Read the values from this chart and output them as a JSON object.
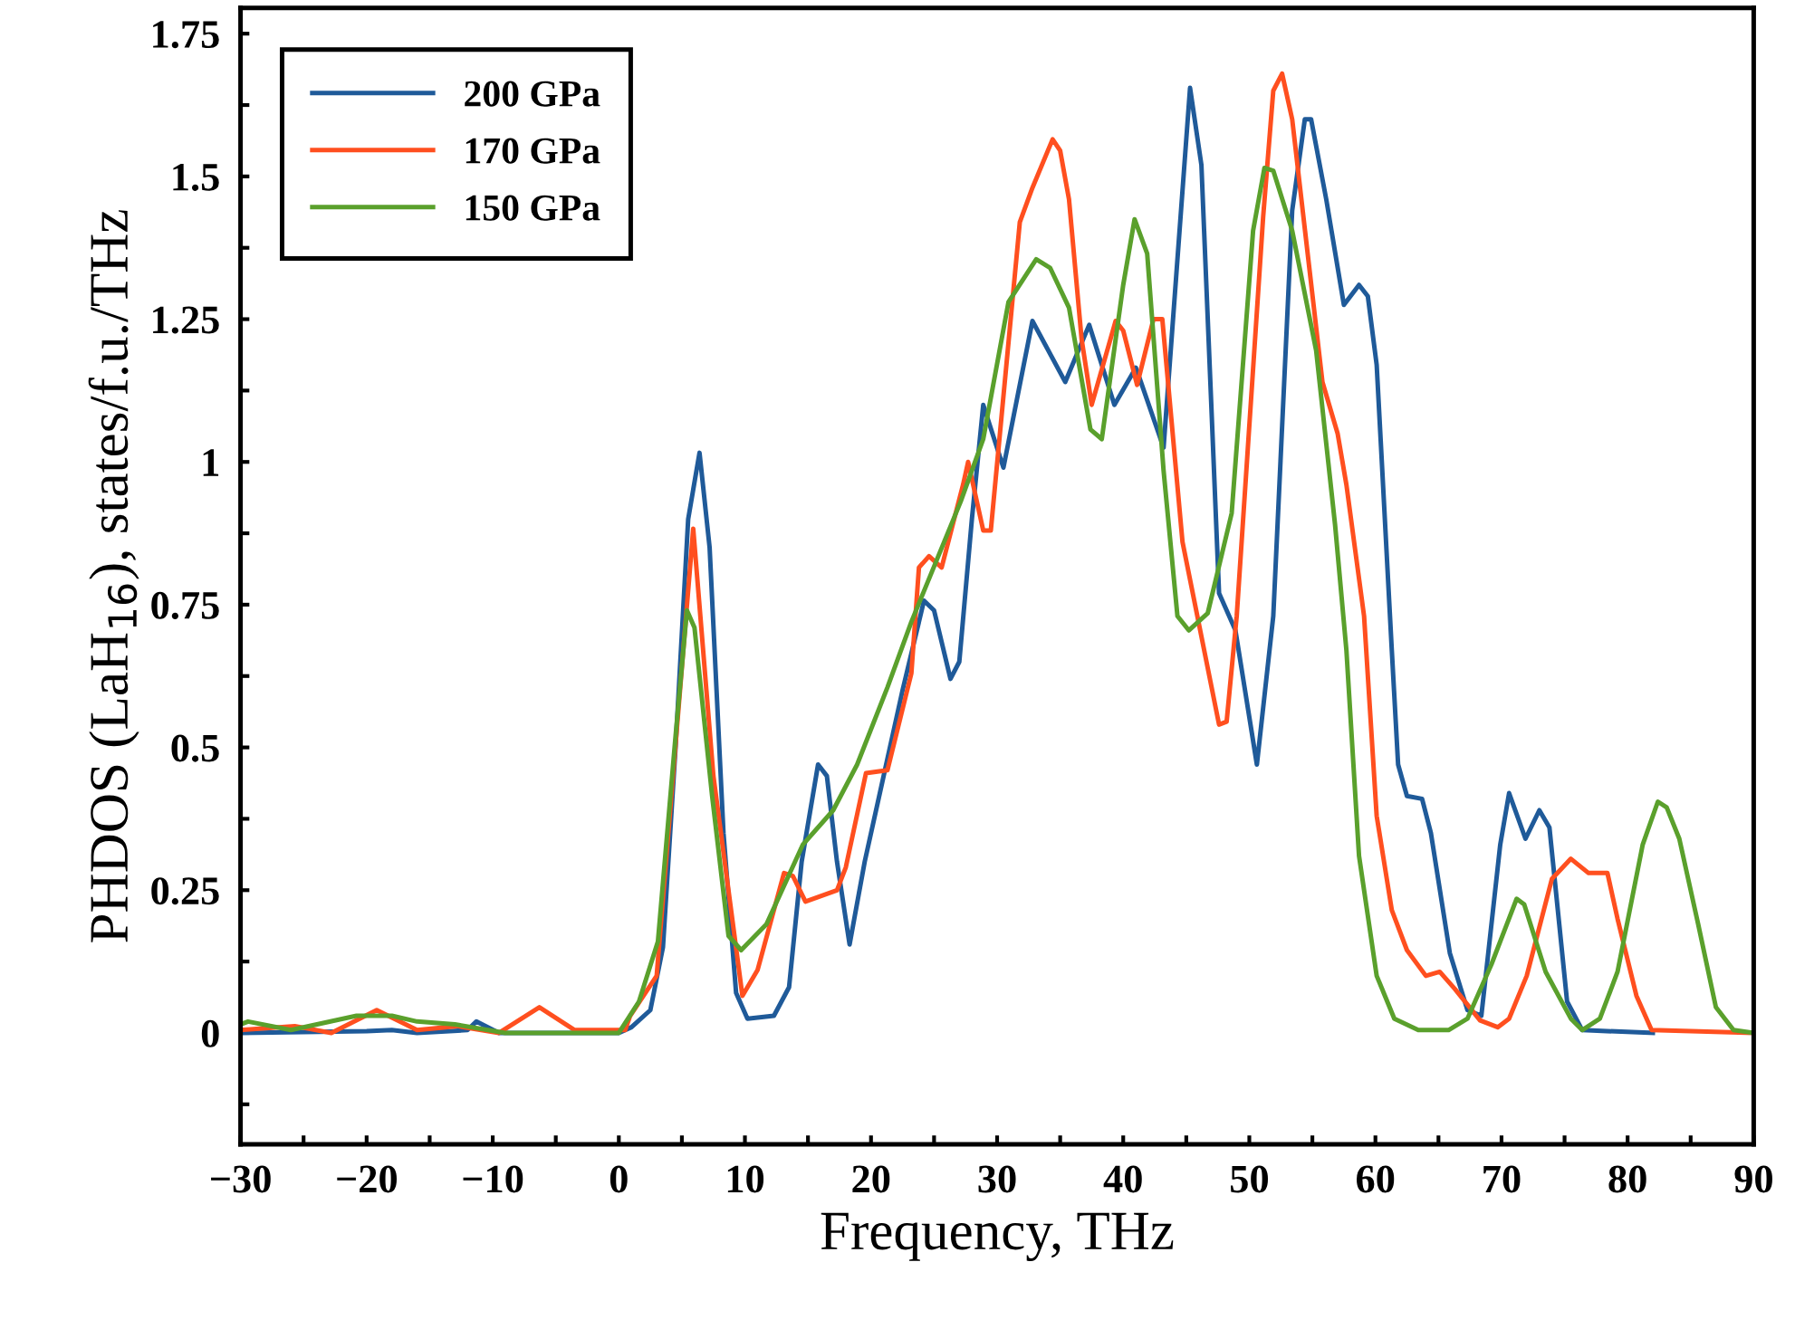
{
  "chart_data": {
    "type": "line",
    "xlabel": "Frequency, THz",
    "ylabel": "PHDOS (LaH$_{16}$), states/f.u./THz",
    "xlim": [
      -30,
      90
    ],
    "ylim": [
      -0.195,
      1.795
    ],
    "xticks": [
      {
        "value": -30,
        "label": "−30"
      },
      {
        "value": -25,
        "label": null
      },
      {
        "value": -20,
        "label": "−20"
      },
      {
        "value": -15,
        "label": null
      },
      {
        "value": -10,
        "label": "−10"
      },
      {
        "value": -5,
        "label": null
      },
      0,
      {
        "value": 5,
        "label": null
      },
      10,
      {
        "value": 15,
        "label": null
      },
      20,
      {
        "value": 25,
        "label": null
      },
      30,
      {
        "value": 35,
        "label": null
      },
      40,
      {
        "value": 45,
        "label": null
      },
      50,
      {
        "value": 55,
        "label": null
      },
      60,
      {
        "value": 65,
        "label": null
      },
      70,
      {
        "value": 75,
        "label": null
      },
      80,
      {
        "value": 85,
        "label": null
      },
      90
    ],
    "yticks": [
      {
        "value": -0.125,
        "label": null
      },
      0,
      {
        "value": 0.125,
        "label": null
      },
      0.25,
      {
        "value": 0.375,
        "label": null
      },
      0.5,
      {
        "value": 0.625,
        "label": null
      },
      0.75,
      {
        "value": 0.875,
        "label": null
      },
      1,
      {
        "value": 1.125,
        "label": null
      },
      1.25,
      {
        "value": 1.375,
        "label": null
      },
      1.5,
      {
        "value": 1.625,
        "label": null
      },
      1.75
    ],
    "grid": false,
    "legend": "top left",
    "line_style": "solid",
    "marker": "none",
    "series": [
      {
        "name": "200 GPa",
        "color": "#1f5a99",
        "x": [
          -30,
          -20,
          -18,
          -16,
          -12,
          -11.3,
          -9.5,
          0,
          1,
          2.5,
          3.5,
          4.5,
          5.5,
          6.4,
          7.2,
          8.3,
          9.3,
          10.2,
          12.3,
          13.5,
          14.5,
          15.8,
          16.5,
          17.3,
          18.3,
          19.5,
          21,
          22.5,
          24.2,
          25,
          26.3,
          27,
          28,
          28.9,
          30.5,
          32.8,
          35.4,
          37.3,
          39.3,
          41.0,
          41.4,
          43.2,
          45.3,
          46.2,
          47.6,
          48.9,
          50.6,
          51.9,
          53.4,
          54.4,
          54.9,
          56.1,
          57.5,
          58.7,
          59.4,
          60.1,
          61.3,
          61.8,
          62.5,
          63.7,
          64.4,
          65.9,
          67.3,
          68.4,
          69.9,
          70.6,
          71.9,
          73.0,
          73.8,
          75.2,
          76.4,
          82
        ],
        "values": [
          0,
          0.003,
          0.005,
          0,
          0.005,
          0.02,
          0,
          0,
          0.01,
          0.04,
          0.15,
          0.5,
          0.9,
          1.016,
          0.85,
          0.35,
          0.07,
          0.025,
          0.03,
          0.08,
          0.3,
          0.47,
          0.45,
          0.3,
          0.155,
          0.3,
          0.45,
          0.6,
          0.757,
          0.74,
          0.62,
          0.65,
          0.9,
          1.1,
          0.99,
          1.247,
          1.14,
          1.24,
          1.1,
          1.165,
          1.14,
          1.025,
          1.655,
          1.52,
          0.77,
          0.705,
          0.47,
          0.73,
          1.44,
          1.6,
          1.6,
          1.46,
          1.275,
          1.31,
          1.29,
          1.17,
          0.67,
          0.47,
          0.415,
          0.41,
          0.35,
          0.14,
          0.04,
          0.03,
          0.33,
          0.42,
          0.34,
          0.39,
          0.36,
          0.055,
          0.005,
          0
        ]
      },
      {
        "name": "170 GPa",
        "color": "#ff4f1f",
        "x": [
          -30,
          -25.7,
          -22.8,
          -19.2,
          -16,
          -12.8,
          -9.5,
          -6.3,
          -3.5,
          0.5,
          0.9,
          3.0,
          5.9,
          7.5,
          9.8,
          11.0,
          13.1,
          13.8,
          14.8,
          17.3,
          18.0,
          19.6,
          21.3,
          23.2,
          23.8,
          24.6,
          25.6,
          27.3,
          27.7,
          28.9,
          29.5,
          31.8,
          32.8,
          34.4,
          35.0,
          35.7,
          36.7,
          37.5,
          39.4,
          40.0,
          41.1,
          42.4,
          43.1,
          44.7,
          47.6,
          48.2,
          49.0,
          51.1,
          51.9,
          52.6,
          53.4,
          55.8,
          57.0,
          57.7,
          59.1,
          60.1,
          61.3,
          62.5,
          64.0,
          65.1,
          66.3,
          68.3,
          69.7,
          70.6,
          72.0,
          74.0,
          75.5,
          76.9,
          78.4,
          79.2,
          80.7,
          81.9,
          90
        ],
        "values": [
          0.005,
          0.012,
          0,
          0.04,
          0.005,
          0.012,
          0,
          0.045,
          0.005,
          0.005,
          0.03,
          0.1,
          0.883,
          0.45,
          0.065,
          0.11,
          0.28,
          0.275,
          0.23,
          0.25,
          0.29,
          0.455,
          0.46,
          0.63,
          0.815,
          0.835,
          0.815,
          0.96,
          1.0,
          0.88,
          0.88,
          1.42,
          1.48,
          1.565,
          1.545,
          1.46,
          1.215,
          1.1,
          1.247,
          1.23,
          1.135,
          1.25,
          1.25,
          0.86,
          0.54,
          0.545,
          0.73,
          1.43,
          1.65,
          1.68,
          1.6,
          1.14,
          1.05,
          0.96,
          0.73,
          0.38,
          0.215,
          0.145,
          0.1,
          0.107,
          0.077,
          0.022,
          0.01,
          0.025,
          0.1,
          0.27,
          0.305,
          0.28,
          0.28,
          0.2,
          0.065,
          0.005,
          0
        ]
      },
      {
        "name": "150 GPa",
        "color": "#5aa02c",
        "x": [
          -30,
          -29.4,
          -26,
          -20.8,
          -18,
          -16,
          -13,
          -9,
          0,
          1.6,
          3.1,
          4.5,
          5.4,
          6.0,
          7.4,
          8.7,
          9.7,
          11.7,
          14.6,
          17.0,
          18.9,
          21.3,
          23.2,
          27.1,
          28.9,
          30.9,
          33.1,
          34.2,
          35.7,
          37.4,
          38.3,
          40.0,
          40.9,
          41.9,
          43.2,
          44.3,
          45.2,
          46.7,
          48.6,
          50.3,
          51.2,
          51.9,
          53.4,
          55.3,
          56.8,
          57.7,
          58.7,
          60.1,
          61.5,
          63.4,
          65.8,
          67.3,
          69.2,
          71.2,
          71.8,
          73.5,
          75.5,
          76.4,
          77.8,
          79.2,
          81.2,
          82.4,
          83.1,
          84.1,
          85.6,
          87.0,
          88.4,
          90
        ],
        "values": [
          0.015,
          0.02,
          0.005,
          0.03,
          0.03,
          0.02,
          0.015,
          0,
          0,
          0.055,
          0.16,
          0.52,
          0.74,
          0.71,
          0.415,
          0.17,
          0.145,
          0.19,
          0.33,
          0.39,
          0.47,
          0.605,
          0.72,
          0.93,
          1.04,
          1.28,
          1.355,
          1.34,
          1.27,
          1.057,
          1.04,
          1.31,
          1.425,
          1.365,
          0.985,
          0.73,
          0.705,
          0.735,
          0.91,
          1.405,
          1.515,
          1.51,
          1.405,
          1.195,
          0.89,
          0.67,
          0.31,
          0.1,
          0.025,
          0.005,
          0.005,
          0.025,
          0.12,
          0.235,
          0.225,
          0.107,
          0.025,
          0.005,
          0.025,
          0.107,
          0.33,
          0.405,
          0.395,
          0.34,
          0.19,
          0.045,
          0.005,
          0
        ]
      }
    ]
  }
}
